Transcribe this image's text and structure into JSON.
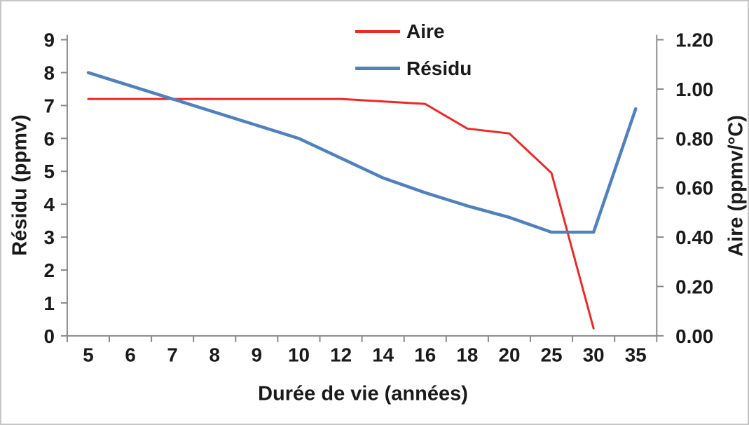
{
  "chart_data": {
    "type": "line",
    "title": "",
    "xlabel": "Durée de vie (années)",
    "ylabel_left": "Résidu (ppmv)",
    "ylabel_right": "Aire (ppmv/°C)",
    "categories": [
      "5",
      "6",
      "7",
      "8",
      "9",
      "10",
      "12",
      "14",
      "16",
      "18",
      "20",
      "25",
      "30",
      "35"
    ],
    "axis_left": {
      "min": 0,
      "max": 9,
      "tick_labels": [
        "9",
        "8",
        "7",
        "6",
        "5",
        "4",
        "3",
        "2",
        "1",
        "0"
      ]
    },
    "axis_right": {
      "min": 0,
      "max": 1.2,
      "tick_labels": [
        "1.20",
        "1.00",
        "0.80",
        "0.60",
        "0.40",
        "0.20",
        "0.00"
      ]
    },
    "grid": false,
    "legend_position": "top-center",
    "series": [
      {
        "name": "Aire",
        "axis": "right",
        "color": "#ee2824",
        "values": [
          0.96,
          0.96,
          0.96,
          0.96,
          0.96,
          0.96,
          0.96,
          0.95,
          0.94,
          0.84,
          0.82,
          0.66,
          0.03,
          null
        ]
      },
      {
        "name": "Résidu",
        "axis": "left",
        "color": "#4e81bd",
        "values": [
          8.0,
          7.6,
          7.2,
          6.8,
          6.4,
          6.0,
          5.4,
          4.8,
          4.35,
          3.95,
          3.6,
          3.15,
          3.15,
          6.9
        ]
      }
    ],
    "colors": {
      "axis": "#8a8a8a",
      "text": "#1a1a1a",
      "background": "#ffffff"
    }
  }
}
